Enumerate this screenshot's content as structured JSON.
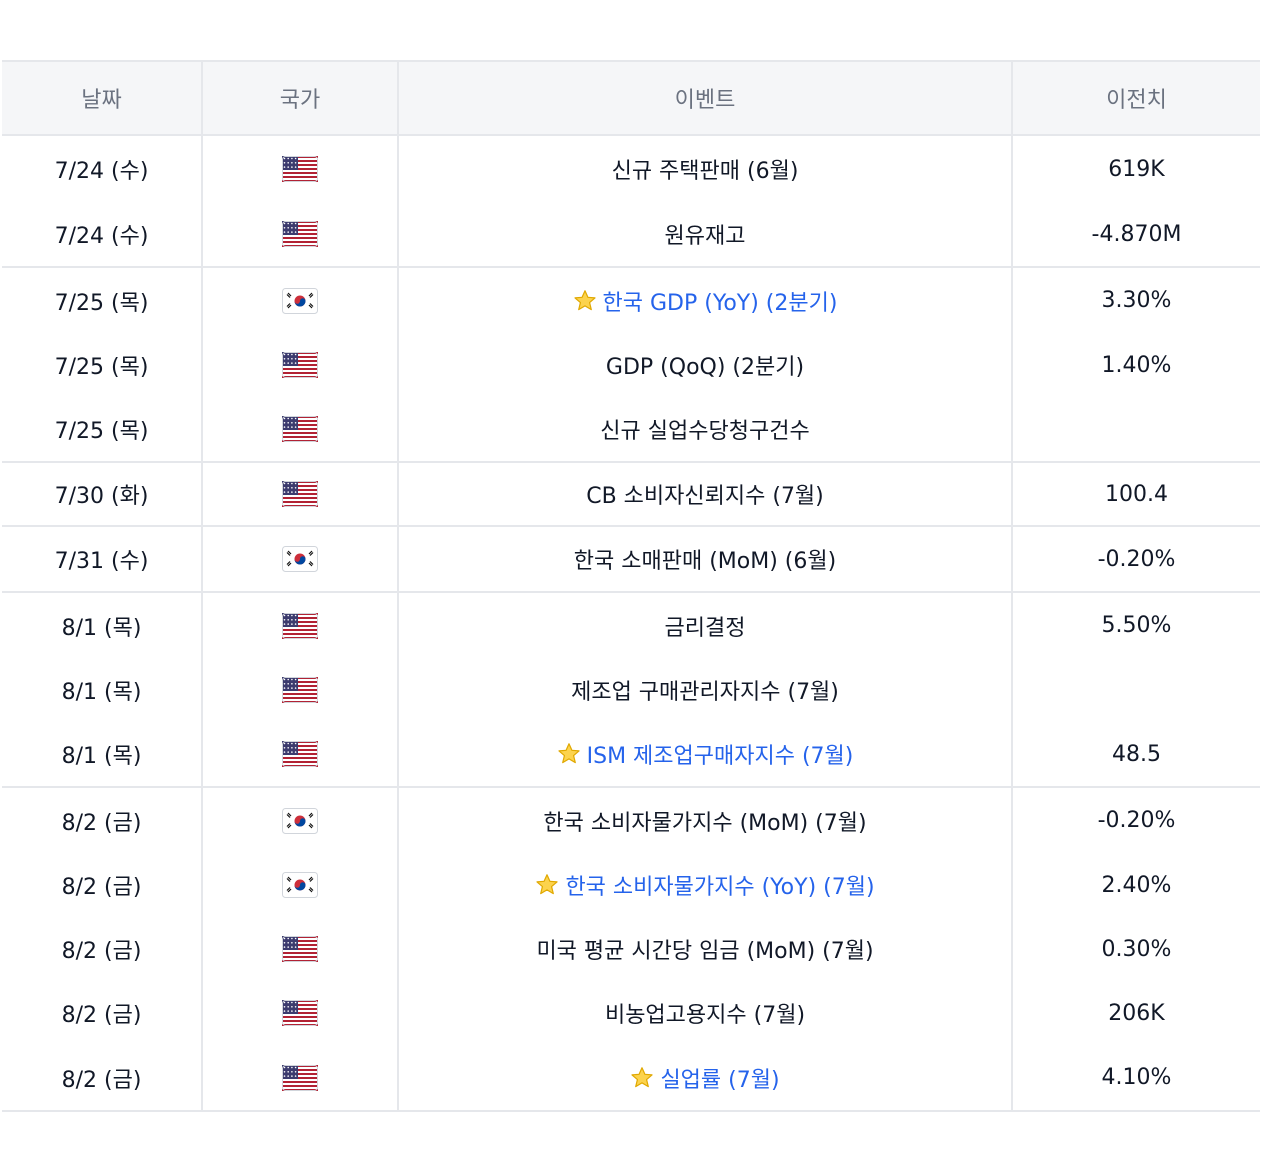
{
  "table": {
    "headers": [
      "날짜",
      "국가",
      "이벤트",
      "이전치"
    ],
    "rows": [
      {
        "date": "7/24 (수)",
        "country": "us",
        "event": "신규 주택판매 (6월)",
        "previous": "619K",
        "highlight": false,
        "group_end": false
      },
      {
        "date": "7/24 (수)",
        "country": "us",
        "event": "원유재고",
        "previous": "-4.870M",
        "highlight": false,
        "group_end": true
      },
      {
        "date": "7/25 (목)",
        "country": "kr",
        "event": "한국 GDP (YoY) (2분기)",
        "previous": "3.30%",
        "highlight": true,
        "group_end": false
      },
      {
        "date": "7/25 (목)",
        "country": "us",
        "event": "GDP (QoQ) (2분기)",
        "previous": "1.40%",
        "highlight": false,
        "group_end": false
      },
      {
        "date": "7/25 (목)",
        "country": "us",
        "event": "신규 실업수당청구건수",
        "previous": "",
        "highlight": false,
        "group_end": true
      },
      {
        "date": "7/30 (화)",
        "country": "us",
        "event": "CB 소비자신뢰지수 (7월)",
        "previous": "100.4",
        "highlight": false,
        "group_end": true
      },
      {
        "date": "7/31 (수)",
        "country": "kr",
        "event": "한국 소매판매 (MoM) (6월)",
        "previous": "-0.20%",
        "highlight": false,
        "group_end": true
      },
      {
        "date": "8/1 (목)",
        "country": "us",
        "event": "금리결정",
        "previous": "5.50%",
        "highlight": false,
        "group_end": false
      },
      {
        "date": "8/1 (목)",
        "country": "us",
        "event": "제조업 구매관리자지수 (7월)",
        "previous": "",
        "highlight": false,
        "group_end": false
      },
      {
        "date": "8/1 (목)",
        "country": "us",
        "event": "ISM 제조업구매자지수 (7월)",
        "previous": "48.5",
        "highlight": true,
        "group_end": true
      },
      {
        "date": "8/2 (금)",
        "country": "kr",
        "event": "한국 소비자물가지수 (MoM) (7월)",
        "previous": "-0.20%",
        "highlight": false,
        "group_end": false
      },
      {
        "date": "8/2 (금)",
        "country": "kr",
        "event": "한국 소비자물가지수 (YoY) (7월)",
        "previous": "2.40%",
        "highlight": true,
        "group_end": false
      },
      {
        "date": "8/2 (금)",
        "country": "us",
        "event": "미국 평균 시간당 임금 (MoM) (7월)",
        "previous": "0.30%",
        "highlight": false,
        "group_end": false
      },
      {
        "date": "8/2 (금)",
        "country": "us",
        "event": "비농업고용지수 (7월)",
        "previous": "206K",
        "highlight": false,
        "group_end": false
      },
      {
        "date": "8/2 (금)",
        "country": "us",
        "event": "실업률 (7월)",
        "previous": "4.10%",
        "highlight": true,
        "group_end": true
      }
    ]
  },
  "icons": {
    "us": "us-flag-icon",
    "kr": "kr-flag-icon",
    "star": "star-icon"
  },
  "colors": {
    "highlight_text": "#2563eb",
    "header_bg": "#f5f6f8",
    "border": "#e5e7eb"
  }
}
